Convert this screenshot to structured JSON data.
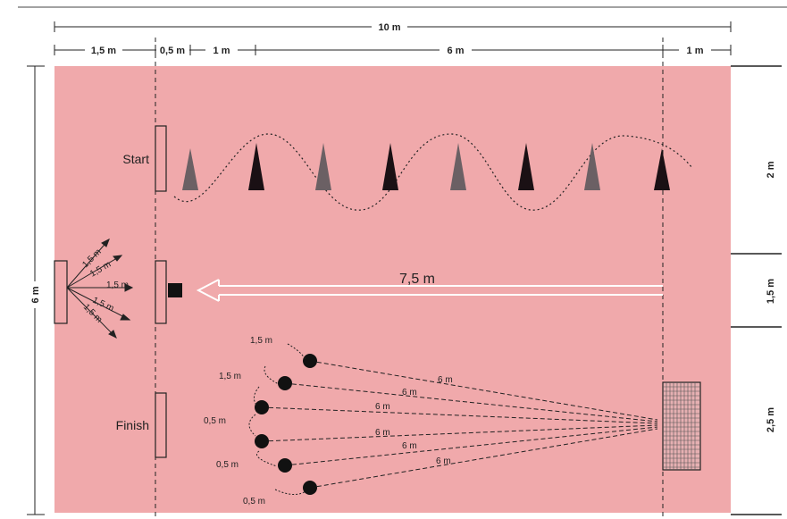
{
  "dimensions": {
    "total_width": "10 m",
    "seg_1": "1,5 m",
    "seg_2": "0,5 m",
    "seg_3": "1 m",
    "seg_4": "6 m",
    "seg_5": "1 m",
    "total_height": "6 m",
    "right_top": "2 m",
    "right_mid": "1,5 m",
    "right_bottom": "2,5 m"
  },
  "stations": {
    "start": "Start",
    "finish": "Finish",
    "throw_distance": "7,5 m"
  },
  "fan_labels": [
    "1,5 m",
    "1,5 m",
    "1,5 m",
    "1,5 m",
    "1,5 m"
  ],
  "ball_spacing": [
    "1,5 m",
    "1,5 m",
    "0,5 m",
    "0,5 m",
    "0,5 m"
  ],
  "shot_distances": [
    "6 m",
    "6 m",
    "6 m",
    "6 m",
    "6 m",
    "6 m"
  ],
  "colors": {
    "field": "#f0a9ab",
    "cone_dark": "#1a1014",
    "cone_gray": "#6b6064",
    "goal_net": "#e6b0b2"
  }
}
